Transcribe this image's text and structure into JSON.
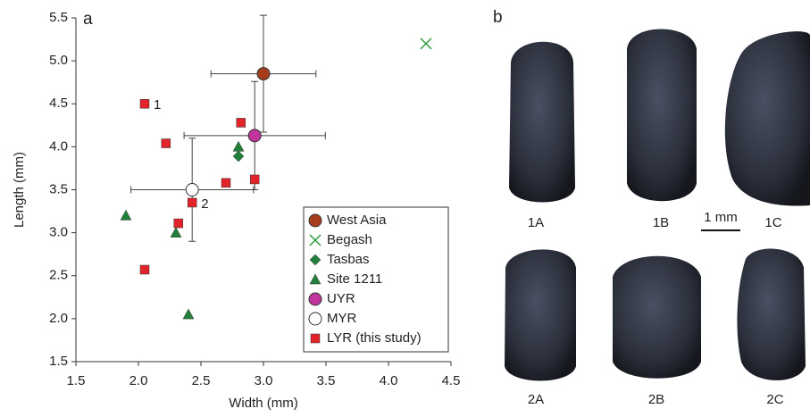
{
  "chart_data": {
    "type": "scatter",
    "panel_label": "a",
    "x_label": "Width (mm)",
    "y_label": "Length (mm)",
    "xlim": [
      1.5,
      4.5
    ],
    "ylim": [
      1.5,
      5.5
    ],
    "xticks": [
      1.5,
      {
        "value": 2,
        "label": "2.0"
      },
      2.5,
      {
        "value": 3,
        "label": "3.0"
      },
      3.5,
      {
        "value": 4,
        "label": "4.0"
      },
      4.5
    ],
    "yticks": [
      1.5,
      {
        "value": 2,
        "label": "2.0"
      },
      2.5,
      {
        "value": 3,
        "label": "3.0"
      },
      3.5,
      {
        "value": 4,
        "label": "4.0"
      },
      4.5,
      {
        "value": 5,
        "label": "5.0"
      },
      5.5
    ],
    "legend": "lower right",
    "series": [
      {
        "name": "West Asia",
        "color": "#a63d1c",
        "marker": "circle",
        "x": [
          3.0
        ],
        "y": [
          4.85
        ],
        "x_err": [
          0.42
        ],
        "y_err": [
          0.68
        ]
      },
      {
        "name": "Begash",
        "color": "#2f9a3f",
        "marker": "x",
        "x": [
          4.3
        ],
        "y": [
          5.2
        ]
      },
      {
        "name": "Tasbas",
        "color": "#23803a",
        "marker": "diamond",
        "x": [
          2.8
        ],
        "y": [
          3.89
        ]
      },
      {
        "name": "Site 1211",
        "color": "#23803a",
        "marker": "triangle",
        "x": [
          1.9,
          2.8,
          2.3,
          2.4
        ],
        "y": [
          3.2,
          4.0,
          3.0,
          2.05
        ]
      },
      {
        "name": "UYR",
        "color": "#c0359b",
        "marker": "circle",
        "x": [
          2.93
        ],
        "y": [
          4.13
        ],
        "x_err": [
          0.565
        ],
        "y_err": [
          0.63
        ]
      },
      {
        "name": "MYR",
        "color": "#ffffff",
        "marker": "circle",
        "x": [
          2.43
        ],
        "y": [
          3.5
        ],
        "x_err": [
          0.49
        ],
        "y_err": [
          0.6
        ]
      },
      {
        "name": "LYR (this study)",
        "color": "#e0242a",
        "marker": "square",
        "x": [
          2.05,
          2.22,
          2.82,
          2.7,
          2.43,
          2.93,
          2.32,
          2.05
        ],
        "y": [
          4.5,
          4.04,
          4.28,
          3.58,
          3.35,
          3.62,
          3.11,
          2.57
        ]
      }
    ],
    "annotations": [
      {
        "text": "1",
        "x": 2.05,
        "y": 4.5
      },
      {
        "text": "2",
        "x": 2.43,
        "y": 3.35
      }
    ]
  },
  "photos": {
    "panel_label": "b",
    "scale_bar": "1 mm",
    "specimens": [
      "1A",
      "1B",
      "1C",
      "2A",
      "2B",
      "2C"
    ]
  }
}
